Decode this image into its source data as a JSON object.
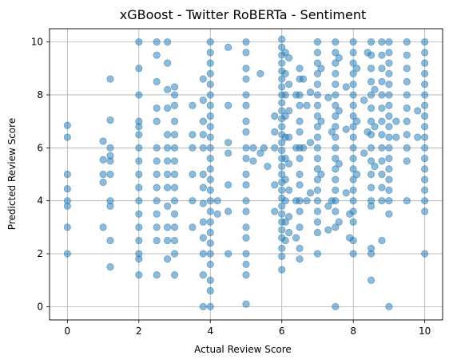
{
  "chart_data": {
    "type": "scatter",
    "title": "xGBoost - Twitter RoBERTa - Sentiment",
    "xlabel": "Actual Review Score",
    "ylabel": "Predicted Review Score",
    "xlim": [
      -0.5,
      10.5
    ],
    "ylim": [
      -0.5,
      10.5
    ],
    "xticks": [
      0,
      2,
      4,
      6,
      8,
      10
    ],
    "yticks": [
      0,
      2,
      4,
      6,
      8,
      10
    ],
    "grid": true,
    "color": "#1f77b4",
    "points": [
      [
        0,
        6.85
      ],
      [
        0,
        6.4
      ],
      [
        0,
        5.0
      ],
      [
        0,
        4.45
      ],
      [
        0,
        4.0
      ],
      [
        0,
        3.8
      ],
      [
        0,
        3.0
      ],
      [
        0,
        2.0
      ],
      [
        1,
        6.25
      ],
      [
        1,
        5.55
      ],
      [
        1,
        5.0
      ],
      [
        1,
        4.7
      ],
      [
        1,
        3.0
      ],
      [
        1.2,
        8.6
      ],
      [
        1.2,
        7.05
      ],
      [
        1.2,
        6.0
      ],
      [
        1.2,
        5.7
      ],
      [
        1.2,
        5.5
      ],
      [
        1.2,
        5.0
      ],
      [
        1.2,
        4.0
      ],
      [
        1.2,
        3.8
      ],
      [
        1.2,
        2.5
      ],
      [
        1.2,
        1.5
      ],
      [
        2,
        10.0
      ],
      [
        2,
        9.0
      ],
      [
        2,
        8.0
      ],
      [
        2,
        7.0
      ],
      [
        2,
        6.8
      ],
      [
        2,
        6.5
      ],
      [
        2,
        6.0
      ],
      [
        2,
        5.5
      ],
      [
        2,
        5.0
      ],
      [
        2,
        4.5
      ],
      [
        2,
        4.0
      ],
      [
        2,
        3.5
      ],
      [
        2,
        3.0
      ],
      [
        2,
        2.5
      ],
      [
        2,
        2.0
      ],
      [
        2,
        1.8
      ],
      [
        2,
        1.2
      ],
      [
        2.5,
        10.0
      ],
      [
        2.5,
        9.5
      ],
      [
        2.5,
        8.5
      ],
      [
        2.5,
        7.5
      ],
      [
        2.5,
        7.0
      ],
      [
        2.5,
        6.0
      ],
      [
        2.5,
        5.5
      ],
      [
        2.5,
        5.0
      ],
      [
        2.5,
        4.5
      ],
      [
        2.5,
        4.0
      ],
      [
        2.5,
        3.5
      ],
      [
        2.5,
        3.0
      ],
      [
        2.5,
        2.5
      ],
      [
        2.5,
        1.2
      ],
      [
        2.8,
        10.0
      ],
      [
        2.8,
        9.2
      ],
      [
        2.8,
        8.2
      ],
      [
        2.8,
        7.5
      ],
      [
        2.8,
        6.5
      ],
      [
        2.8,
        6.0
      ],
      [
        2.8,
        5.5
      ],
      [
        2.8,
        5.0
      ],
      [
        2.8,
        4.5
      ],
      [
        2.8,
        3.8
      ],
      [
        2.8,
        3.0
      ],
      [
        2.8,
        2.5
      ],
      [
        2.8,
        1.8
      ],
      [
        3,
        8.3
      ],
      [
        3,
        8.0
      ],
      [
        3,
        7.6
      ],
      [
        3,
        7.0
      ],
      [
        3,
        6.5
      ],
      [
        3,
        6.0
      ],
      [
        3,
        5.5
      ],
      [
        3,
        5.0
      ],
      [
        3,
        4.5
      ],
      [
        3,
        4.0
      ],
      [
        3,
        3.5
      ],
      [
        3,
        3.0
      ],
      [
        3,
        2.5
      ],
      [
        3,
        2.0
      ],
      [
        3,
        1.2
      ],
      [
        3.5,
        7.6
      ],
      [
        3.5,
        6.5
      ],
      [
        3.5,
        6.0
      ],
      [
        3.5,
        5.0
      ],
      [
        3.5,
        4.0
      ],
      [
        3.5,
        3.0
      ],
      [
        3.8,
        8.6
      ],
      [
        3.8,
        7.8
      ],
      [
        3.8,
        7.0
      ],
      [
        3.8,
        6.5
      ],
      [
        3.8,
        6.0
      ],
      [
        3.8,
        5.0
      ],
      [
        3.8,
        4.5
      ],
      [
        3.8,
        3.9
      ],
      [
        3.8,
        3.2
      ],
      [
        3.8,
        2.6
      ],
      [
        3.8,
        2.0
      ],
      [
        3.8,
        1.2
      ],
      [
        3.8,
        0.0
      ],
      [
        4,
        10.0
      ],
      [
        4,
        9.6
      ],
      [
        4,
        9.2
      ],
      [
        4,
        8.8
      ],
      [
        4,
        8.4
      ],
      [
        4,
        8.0
      ],
      [
        4,
        7.6
      ],
      [
        4,
        7.2
      ],
      [
        4,
        6.8
      ],
      [
        4,
        6.4
      ],
      [
        4,
        6.0
      ],
      [
        4,
        5.6
      ],
      [
        4,
        5.2
      ],
      [
        4,
        4.8
      ],
      [
        4,
        4.4
      ],
      [
        4,
        4.0
      ],
      [
        4,
        3.6
      ],
      [
        4,
        3.2
      ],
      [
        4,
        2.8
      ],
      [
        4,
        2.4
      ],
      [
        4,
        2.0
      ],
      [
        4,
        1.6
      ],
      [
        4,
        1.0
      ],
      [
        4,
        0.6
      ],
      [
        4,
        0.0
      ],
      [
        4.2,
        3.5
      ],
      [
        4.2,
        4.0
      ],
      [
        4.5,
        9.8
      ],
      [
        4.5,
        7.6
      ],
      [
        4.5,
        6.2
      ],
      [
        4.5,
        5.8
      ],
      [
        4.5,
        4.6
      ],
      [
        4.5,
        3.6
      ],
      [
        4.5,
        2.0
      ],
      [
        5,
        10.0
      ],
      [
        5,
        9.6
      ],
      [
        5,
        9.0
      ],
      [
        5,
        8.6
      ],
      [
        5,
        8.0
      ],
      [
        5,
        7.6
      ],
      [
        5,
        7.0
      ],
      [
        5,
        6.6
      ],
      [
        5,
        6.0
      ],
      [
        5,
        5.6
      ],
      [
        5,
        5.0
      ],
      [
        5,
        4.6
      ],
      [
        5,
        4.0
      ],
      [
        5,
        3.6
      ],
      [
        5,
        3.0
      ],
      [
        5,
        2.6
      ],
      [
        5,
        2.0
      ],
      [
        5,
        1.6
      ],
      [
        5,
        1.2
      ],
      [
        5,
        0.1
      ],
      [
        5.2,
        6.0
      ],
      [
        5.2,
        5.5
      ],
      [
        5.4,
        8.8
      ],
      [
        5.4,
        5.8
      ],
      [
        5.5,
        6.0
      ],
      [
        5.6,
        5.3
      ],
      [
        5.8,
        7.2
      ],
      [
        5.8,
        6.6
      ],
      [
        5.8,
        6.0
      ],
      [
        5.8,
        4.6
      ],
      [
        5.8,
        3.6
      ],
      [
        6,
        10.1
      ],
      [
        6,
        9.8
      ],
      [
        6,
        9.5
      ],
      [
        6,
        9.2
      ],
      [
        6,
        8.9
      ],
      [
        6,
        8.6
      ],
      [
        6,
        8.3
      ],
      [
        6,
        8.0
      ],
      [
        6,
        7.7
      ],
      [
        6,
        7.4
      ],
      [
        6,
        7.1
      ],
      [
        6,
        6.8
      ],
      [
        6,
        6.5
      ],
      [
        6,
        6.2
      ],
      [
        6,
        5.9
      ],
      [
        6,
        5.6
      ],
      [
        6,
        5.3
      ],
      [
        6,
        5.0
      ],
      [
        6,
        4.7
      ],
      [
        6,
        4.4
      ],
      [
        6,
        4.1
      ],
      [
        6,
        3.8
      ],
      [
        6,
        3.5
      ],
      [
        6,
        3.2
      ],
      [
        6,
        2.9
      ],
      [
        6,
        2.6
      ],
      [
        6,
        2.2
      ],
      [
        6,
        1.9
      ],
      [
        6,
        1.4
      ],
      [
        6.1,
        9.6
      ],
      [
        6.1,
        8.8
      ],
      [
        6.1,
        8.0
      ],
      [
        6.1,
        7.2
      ],
      [
        6.1,
        6.4
      ],
      [
        6.1,
        5.6
      ],
      [
        6.1,
        4.8
      ],
      [
        6.1,
        4.0
      ],
      [
        6.1,
        3.2
      ],
      [
        6.1,
        2.5
      ],
      [
        6.2,
        9.4
      ],
      [
        6.2,
        8.4
      ],
      [
        6.2,
        7.4
      ],
      [
        6.2,
        6.4
      ],
      [
        6.2,
        5.4
      ],
      [
        6.2,
        4.4
      ],
      [
        6.2,
        3.4
      ],
      [
        6.2,
        2.8
      ],
      [
        6.4,
        8.0
      ],
      [
        6.4,
        6.0
      ],
      [
        6.4,
        4.0
      ],
      [
        6.4,
        2.6
      ],
      [
        6.5,
        9.0
      ],
      [
        6.5,
        8.6
      ],
      [
        6.5,
        8.0
      ],
      [
        6.5,
        7.6
      ],
      [
        6.5,
        7.0
      ],
      [
        6.5,
        6.6
      ],
      [
        6.5,
        6.0
      ],
      [
        6.5,
        5.6
      ],
      [
        6.5,
        5.0
      ],
      [
        6.5,
        4.6
      ],
      [
        6.5,
        4.0
      ],
      [
        6.5,
        3.6
      ],
      [
        6.5,
        3.0
      ],
      [
        6.5,
        2.2
      ],
      [
        6.5,
        1.8
      ],
      [
        6.6,
        8.6
      ],
      [
        6.6,
        6.0
      ],
      [
        6.7,
        7.6
      ],
      [
        6.7,
        4.0
      ],
      [
        6.8,
        8.1
      ],
      [
        6.8,
        6.2
      ],
      [
        6.8,
        4.3
      ],
      [
        7,
        10.0
      ],
      [
        7,
        9.6
      ],
      [
        7,
        9.2
      ],
      [
        7,
        8.8
      ],
      [
        7,
        8.4
      ],
      [
        7,
        8.0
      ],
      [
        7,
        7.6
      ],
      [
        7,
        7.2
      ],
      [
        7,
        6.8
      ],
      [
        7,
        6.4
      ],
      [
        7,
        6.0
      ],
      [
        7,
        5.6
      ],
      [
        7,
        5.2
      ],
      [
        7,
        4.8
      ],
      [
        7,
        4.4
      ],
      [
        7,
        4.0
      ],
      [
        7,
        3.6
      ],
      [
        7,
        3.2
      ],
      [
        7,
        2.8
      ],
      [
        7,
        2.0
      ],
      [
        7.1,
        9.0
      ],
      [
        7.1,
        7.0
      ],
      [
        7.1,
        5.0
      ],
      [
        7.3,
        7.9
      ],
      [
        7.3,
        3.8
      ],
      [
        7.3,
        2.9
      ],
      [
        7.4,
        6.6
      ],
      [
        7.4,
        4.0
      ],
      [
        7.5,
        10.0
      ],
      [
        7.5,
        9.6
      ],
      [
        7.5,
        9.2
      ],
      [
        7.5,
        8.8
      ],
      [
        7.5,
        8.4
      ],
      [
        7.5,
        8.0
      ],
      [
        7.5,
        7.6
      ],
      [
        7.5,
        7.2
      ],
      [
        7.5,
        6.8
      ],
      [
        7.5,
        6.4
      ],
      [
        7.5,
        6.0
      ],
      [
        7.5,
        5.6
      ],
      [
        7.5,
        5.2
      ],
      [
        7.5,
        4.8
      ],
      [
        7.5,
        4.4
      ],
      [
        7.5,
        4.0
      ],
      [
        7.5,
        3.6
      ],
      [
        7.5,
        3.0
      ],
      [
        7.5,
        0.0
      ],
      [
        7.6,
        9.4
      ],
      [
        7.6,
        7.4
      ],
      [
        7.6,
        5.4
      ],
      [
        7.6,
        3.2
      ],
      [
        7.8,
        8.3
      ],
      [
        7.8,
        6.7
      ],
      [
        7.8,
        4.3
      ],
      [
        7.9,
        3.5
      ],
      [
        7.9,
        2.6
      ],
      [
        8,
        10.0
      ],
      [
        8,
        9.6
      ],
      [
        8,
        9.2
      ],
      [
        8,
        8.8
      ],
      [
        8,
        8.4
      ],
      [
        8,
        8.0
      ],
      [
        8,
        7.6
      ],
      [
        8,
        7.2
      ],
      [
        8,
        6.8
      ],
      [
        8,
        6.4
      ],
      [
        8,
        6.0
      ],
      [
        8,
        5.6
      ],
      [
        8,
        5.2
      ],
      [
        8,
        4.8
      ],
      [
        8,
        4.4
      ],
      [
        8,
        4.0
      ],
      [
        8,
        3.6
      ],
      [
        8,
        3.2
      ],
      [
        8,
        2.5
      ],
      [
        8,
        2.0
      ],
      [
        8.1,
        9.0
      ],
      [
        8.1,
        7.0
      ],
      [
        8.1,
        5.0
      ],
      [
        8.3,
        7.8
      ],
      [
        8.3,
        5.8
      ],
      [
        8.4,
        9.6
      ],
      [
        8.4,
        6.6
      ],
      [
        8.5,
        10.0
      ],
      [
        8.5,
        9.5
      ],
      [
        8.5,
        9.0
      ],
      [
        8.5,
        8.5
      ],
      [
        8.5,
        8.0
      ],
      [
        8.5,
        7.5
      ],
      [
        8.5,
        7.0
      ],
      [
        8.5,
        6.5
      ],
      [
        8.5,
        6.0
      ],
      [
        8.5,
        5.5
      ],
      [
        8.5,
        5.0
      ],
      [
        8.5,
        4.5
      ],
      [
        8.5,
        4.0
      ],
      [
        8.5,
        3.8
      ],
      [
        8.5,
        2.2
      ],
      [
        8.5,
        2.0
      ],
      [
        8.5,
        1.0
      ],
      [
        8.6,
        8.2
      ],
      [
        8.6,
        6.8
      ],
      [
        8.6,
        5.3
      ],
      [
        8.8,
        10.0
      ],
      [
        8.8,
        9.5
      ],
      [
        8.8,
        9.0
      ],
      [
        8.8,
        8.5
      ],
      [
        8.8,
        8.0
      ],
      [
        8.8,
        7.5
      ],
      [
        8.8,
        7.0
      ],
      [
        8.8,
        6.5
      ],
      [
        8.8,
        6.0
      ],
      [
        8.8,
        5.5
      ],
      [
        8.8,
        5.0
      ],
      [
        8.8,
        4.5
      ],
      [
        8.8,
        4.0
      ],
      [
        8.8,
        2.5
      ],
      [
        9,
        10.0
      ],
      [
        9,
        9.6
      ],
      [
        9,
        9.2
      ],
      [
        9,
        8.8
      ],
      [
        9,
        8.4
      ],
      [
        9,
        8.0
      ],
      [
        9,
        7.6
      ],
      [
        9,
        7.2
      ],
      [
        9,
        6.8
      ],
      [
        9,
        6.4
      ],
      [
        9,
        6.0
      ],
      [
        9,
        5.6
      ],
      [
        9,
        5.2
      ],
      [
        9,
        4.8
      ],
      [
        9,
        4.4
      ],
      [
        9,
        4.0
      ],
      [
        9,
        3.5
      ],
      [
        9,
        0.0
      ],
      [
        9.2,
        7.0
      ],
      [
        9.2,
        6.4
      ],
      [
        9.5,
        10.0
      ],
      [
        9.5,
        9.5
      ],
      [
        9.5,
        9.0
      ],
      [
        9.5,
        8.5
      ],
      [
        9.5,
        8.0
      ],
      [
        9.5,
        7.5
      ],
      [
        9.5,
        7.0
      ],
      [
        9.5,
        6.5
      ],
      [
        9.5,
        6.0
      ],
      [
        9.5,
        5.5
      ],
      [
        9.5,
        4.0
      ],
      [
        9.8,
        6.4
      ],
      [
        9.8,
        7.4
      ],
      [
        10,
        10.0
      ],
      [
        10,
        9.6
      ],
      [
        10,
        9.2
      ],
      [
        10,
        8.8
      ],
      [
        10,
        8.4
      ],
      [
        10,
        8.0
      ],
      [
        10,
        7.6
      ],
      [
        10,
        7.2
      ],
      [
        10,
        6.8
      ],
      [
        10,
        6.4
      ],
      [
        10,
        6.0
      ],
      [
        10,
        5.6
      ],
      [
        10,
        5.2
      ],
      [
        10,
        4.8
      ],
      [
        10,
        4.4
      ],
      [
        10,
        4.0
      ],
      [
        10,
        3.6
      ],
      [
        10,
        2.0
      ]
    ]
  }
}
